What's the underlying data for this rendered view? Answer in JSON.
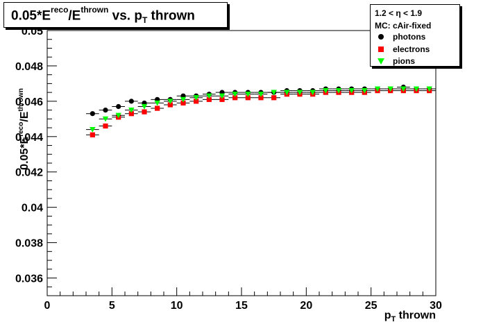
{
  "title": {
    "prefix": "0.05*E",
    "sup1": "reco",
    "mid": "/E",
    "sup2": "thrown",
    "mid2": " vs. p",
    "sub": "T",
    "suffix": " thrown"
  },
  "legend": {
    "header1": "1.2 < η < 1.9",
    "header2": "MC: cAir-fixed",
    "entries": [
      {
        "label": "photons",
        "color": "#000000",
        "marker": "circle"
      },
      {
        "label": "electrons",
        "color": "#ff0000",
        "marker": "square"
      },
      {
        "label": "pions",
        "color": "#00ff00",
        "marker": "triangle-down"
      }
    ]
  },
  "chart_data": {
    "type": "scatter",
    "xlabel": "p_T thrown",
    "ylabel": "0.05*E^reco/E^thrown",
    "xlim": [
      0,
      30
    ],
    "ylim": [
      0.035,
      0.05
    ],
    "x_ticks": [
      "0",
      "5",
      "10",
      "15",
      "20",
      "25",
      "30"
    ],
    "y_ticks": [
      "0.036",
      "0.038",
      "0.04",
      "0.042",
      "0.044",
      "0.046",
      "0.048",
      "0.05"
    ],
    "x": [
      3.5,
      4.5,
      5.5,
      6.5,
      7.5,
      8.5,
      9.5,
      10.5,
      11.5,
      12.5,
      13.5,
      14.5,
      15.5,
      16.5,
      17.5,
      18.5,
      19.5,
      20.5,
      21.5,
      22.5,
      23.5,
      24.5,
      25.5,
      26.5,
      27.5,
      28.5,
      29.5
    ],
    "series": [
      {
        "name": "photons",
        "color": "#000000",
        "marker": "circle",
        "values": [
          0.0453,
          0.0455,
          0.0457,
          0.046,
          0.0459,
          0.0461,
          0.0461,
          0.0463,
          0.0463,
          0.0464,
          0.0465,
          0.0465,
          0.0465,
          0.0465,
          0.0465,
          0.0466,
          0.0466,
          0.0466,
          0.0467,
          0.0467,
          0.0467,
          0.0467,
          0.0467,
          0.0467,
          0.0468,
          0.0467,
          0.0467
        ]
      },
      {
        "name": "electrons",
        "color": "#ff0000",
        "marker": "square",
        "values": [
          0.0441,
          0.0446,
          0.0451,
          0.0453,
          0.0454,
          0.0456,
          0.0458,
          0.0459,
          0.046,
          0.0461,
          0.0461,
          0.0462,
          0.0462,
          0.0462,
          0.0462,
          0.0464,
          0.0464,
          0.0464,
          0.0465,
          0.0465,
          0.0465,
          0.0465,
          0.0466,
          0.0466,
          0.0466,
          0.0466,
          0.0466
        ]
      },
      {
        "name": "pions",
        "color": "#00ff00",
        "marker": "triangle-down",
        "values": [
          0.0444,
          0.045,
          0.0452,
          0.0455,
          0.0457,
          0.0459,
          0.046,
          0.0461,
          0.0462,
          0.0463,
          0.0463,
          0.0464,
          0.0464,
          0.0464,
          0.0465,
          0.0465,
          0.0465,
          0.0465,
          0.0466,
          0.0466,
          0.0466,
          0.0466,
          0.0467,
          0.0467,
          0.0467,
          0.0467,
          0.0467
        ]
      }
    ]
  }
}
